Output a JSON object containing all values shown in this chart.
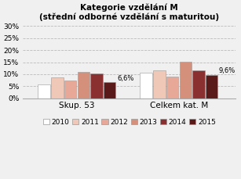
{
  "title_line1": "Kategorie vzdělání M",
  "title_line2": "(střední odborné vzdělání s maturitou)",
  "groups": [
    "Skup. 53",
    "Celkem kat. M"
  ],
  "years": [
    "2010",
    "2011",
    "2012",
    "2013",
    "2014",
    "2015"
  ],
  "values": {
    "Skup. 53": [
      5.6,
      8.5,
      7.3,
      11.0,
      10.3,
      6.6
    ],
    "Celkem kat. M": [
      10.7,
      11.5,
      9.1,
      15.1,
      11.5,
      9.6
    ]
  },
  "annotations": {
    "Skup. 53": {
      "label": "6,6%"
    },
    "Celkem kat. M": {
      "label": "9,6%"
    }
  },
  "colors": [
    "#ffffff",
    "#f0c8b8",
    "#e8a898",
    "#d4907a",
    "#8b3030",
    "#5a1a1a"
  ],
  "ylim": [
    0,
    31
  ],
  "yticks": [
    0,
    5,
    10,
    15,
    20,
    25,
    30
  ],
  "ytick_labels": [
    "0%",
    "5%",
    "10%",
    "15%",
    "20%",
    "25%",
    "30%"
  ],
  "background_color": "#f0f0f0",
  "plot_bg_color": "#f0f0f0",
  "title_fontsize": 7.5,
  "xlabel_fontsize": 7.5,
  "ytick_fontsize": 6.5,
  "legend_fontsize": 6.5
}
